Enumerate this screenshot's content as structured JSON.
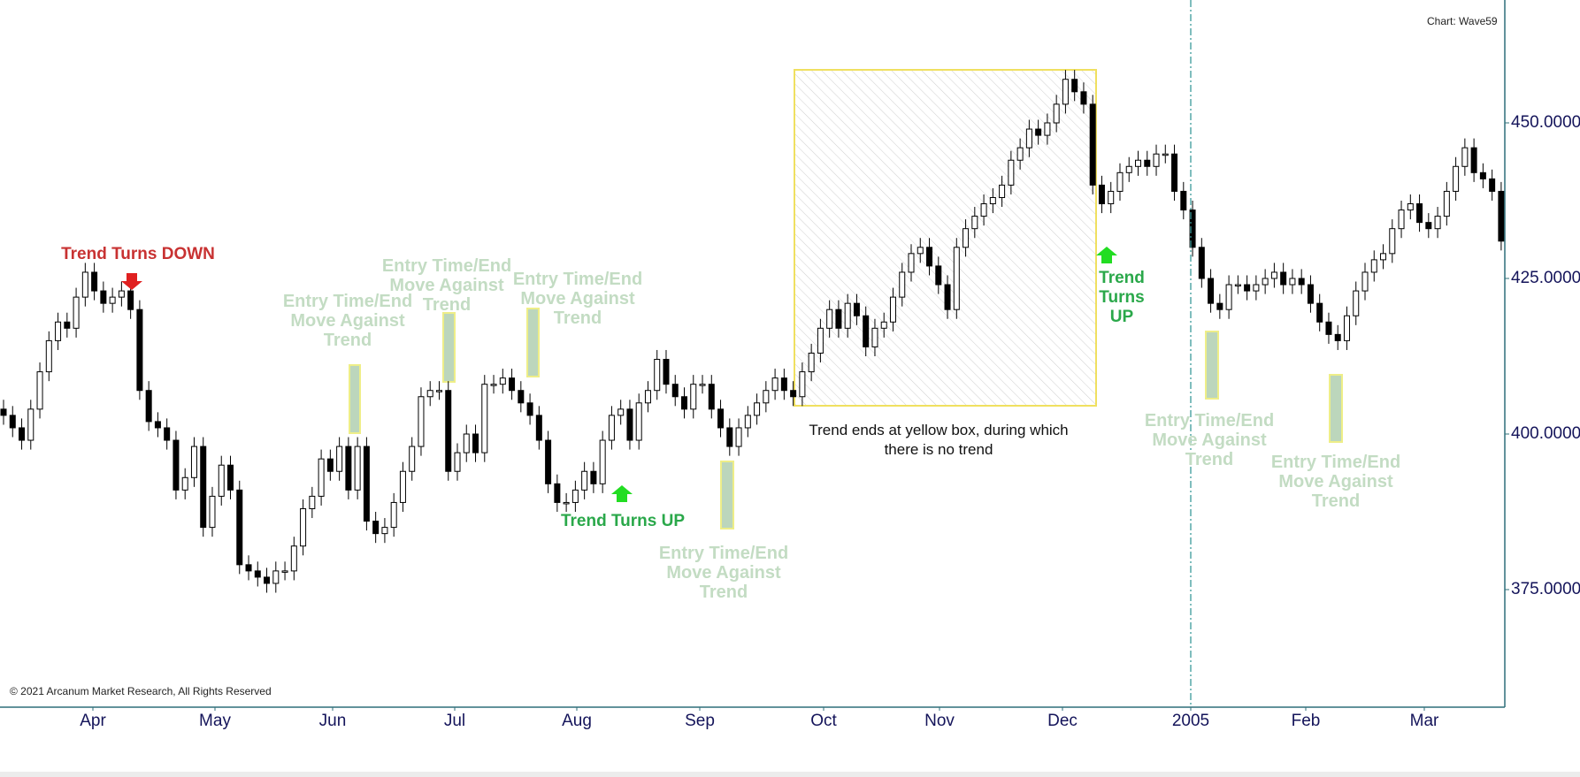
{
  "chart_data": {
    "type": "candlestick",
    "title": "",
    "watermark": "Chart: Wave59",
    "copyright": "© 2021 Arcanum Market Research, All Rights Reserved",
    "ylim": [
      353,
      460
    ],
    "y_ticks": [
      "375.0000",
      "400.0000",
      "425.0000",
      "450.0000"
    ],
    "y_tick_values": [
      375,
      400,
      425,
      450
    ],
    "x_ticks": [
      "Apr",
      "May",
      "Jun",
      "Jul",
      "Aug",
      "Sep",
      "Oct",
      "Nov",
      "Dec",
      "2005",
      "Feb",
      "Mar"
    ],
    "x_tick_index": [
      11,
      26,
      40,
      55,
      70,
      85,
      100,
      114,
      129,
      145,
      159,
      174
    ],
    "first_open": 404,
    "wick": 1.5,
    "close": [
      403,
      401,
      399,
      404,
      410,
      415,
      418,
      417,
      422,
      426,
      423,
      421,
      422,
      423,
      420,
      407,
      402,
      401,
      399,
      391,
      393,
      398,
      385,
      390,
      395,
      391,
      379,
      378,
      377,
      376,
      378,
      378,
      382,
      388,
      390,
      396,
      394,
      398,
      391,
      398,
      386,
      384,
      385,
      389,
      394,
      398,
      406,
      407,
      407,
      394,
      397,
      400,
      397,
      408,
      408,
      409,
      407,
      405,
      403,
      399,
      392,
      389,
      389,
      391,
      394,
      392,
      399,
      403,
      404,
      399,
      405,
      407,
      412,
      408,
      406,
      404,
      408,
      408,
      404,
      401,
      398,
      401,
      403,
      405,
      407,
      409,
      407,
      406,
      410,
      413,
      417,
      420,
      417,
      421,
      419,
      414,
      417,
      418,
      422,
      426,
      429,
      430,
      427,
      424,
      420,
      430,
      433,
      435,
      437,
      438,
      440,
      444,
      446,
      449,
      448,
      450,
      453,
      457,
      455,
      453,
      440,
      437,
      439,
      442,
      443,
      444,
      443,
      445,
      445,
      439,
      436,
      430,
      425,
      421,
      420,
      424,
      424,
      423,
      424,
      425,
      426,
      424,
      425,
      424,
      421,
      418,
      416,
      415,
      419,
      423,
      426,
      428,
      429,
      433,
      436,
      437,
      434,
      433,
      435,
      439,
      443,
      446,
      442,
      441,
      439,
      431
    ],
    "annotations": {
      "trend_down": "Trend Turns DOWN",
      "trend_up_1": "Trend Turns UP",
      "trend_up_2": [
        "Trend",
        "Turns",
        "UP"
      ],
      "entry": [
        "Entry Time/End",
        "Move Against",
        "Trend"
      ],
      "no_trend_note": [
        "Trend ends at yellow box, during which",
        "there is no trend"
      ]
    },
    "colors": {
      "up_arrow": "#22dd22",
      "down_arrow": "#e02020",
      "trend_down_text": "#c83232",
      "trend_up_text": "#2aa84a",
      "entry_text": "#c3dcc3",
      "entry_bar": "#bcd6bc",
      "box": "#f0e060",
      "axis": "#2f6f7a"
    }
  }
}
